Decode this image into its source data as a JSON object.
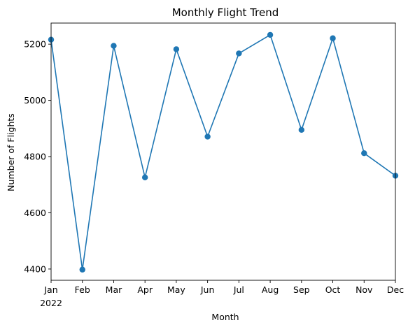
{
  "chart_data": {
    "type": "line",
    "title": "Monthly Flight Trend",
    "xlabel": "Month",
    "ylabel": "Number of Flights",
    "categories": [
      "Jan",
      "Feb",
      "Mar",
      "Apr",
      "May",
      "Jun",
      "Jul",
      "Aug",
      "Sep",
      "Oct",
      "Nov",
      "Dec"
    ],
    "year_label": "2022",
    "series": [
      {
        "values": [
          5216,
          4398,
          5194,
          4726,
          5182,
          4871,
          5167,
          5233,
          4895,
          5221,
          4812,
          4732
        ],
        "color": "#1f77b4",
        "marker": "circle"
      }
    ],
    "ylim": [
      4360,
      5275
    ],
    "yticks": [
      4400,
      4600,
      4800,
      5000,
      5200
    ],
    "grid": false
  }
}
